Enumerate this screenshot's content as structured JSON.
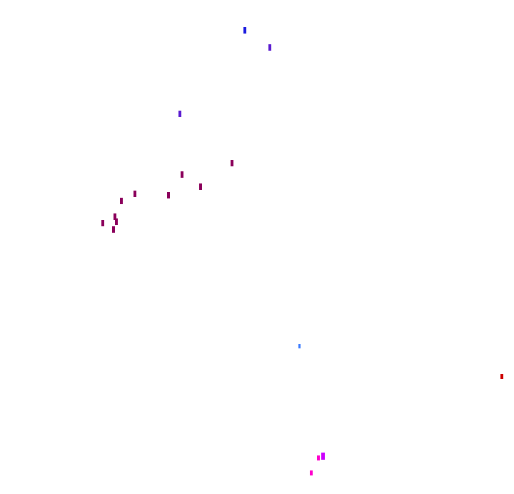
{
  "colors": {
    "blue": "#1a1adf",
    "violet": "#5a1ad0",
    "plum": "#8a005a",
    "light_blue": "#3a7aff",
    "red": "#cc0000",
    "magenta": "#cc00ff",
    "pink": "#ff00cc"
  }
}
